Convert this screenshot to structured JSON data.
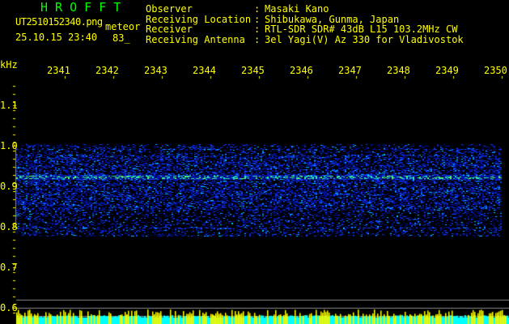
{
  "header": {
    "app_title": "H R O F F T",
    "filename": "UT2510152340.png",
    "mode": "meteor",
    "datetime": "25.10.15 23:40",
    "count": "83_"
  },
  "info": [
    {
      "label": "Observer",
      "value": "Masaki Kano"
    },
    {
      "label": "Receiving Location",
      "value": "Shibukawa, Gunma, Japan"
    },
    {
      "label": "Receiver",
      "value": "RTL-SDR SDR# 43dB L15 103.2MHz CW"
    },
    {
      "label": "Receiving Antenna",
      "value": "3el Yagi(V) Az 330 for Vladivostok"
    }
  ],
  "axis": {
    "unit": "kHz",
    "x_ticks": [
      "2341",
      "2342",
      "2343",
      "2344",
      "2345",
      "2346",
      "2347",
      "2348",
      "2349",
      "2350"
    ],
    "y_ticks": [
      "1.1",
      "1.0",
      "0.9",
      "0.8",
      "0.7",
      "0.6"
    ]
  },
  "colors": {
    "text": "#ffff00",
    "title": "#00ff00",
    "spectrum_base": "#00ffff",
    "spectrum_peak": "#ffff00",
    "waterfall": "#0000c0"
  }
}
